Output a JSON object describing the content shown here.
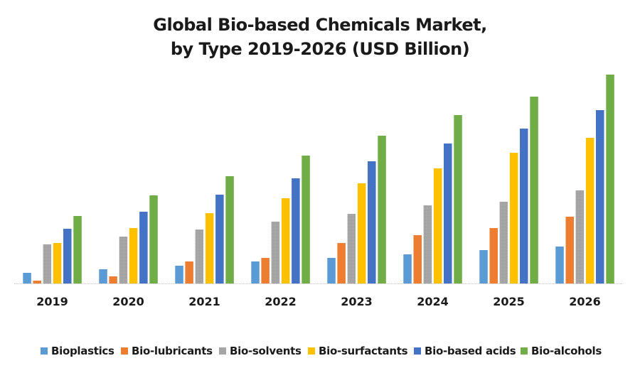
{
  "chart_data": {
    "type": "bar",
    "title": "Global Bio-based Chemicals Market, by Type 2019-2026 (USD Billion)",
    "title_lines": [
      "Global Bio-based Chemicals Market,",
      "by Type 2019-2026 (USD Billion)"
    ],
    "xlabel": "",
    "ylabel": "",
    "ylim": [
      0,
      30
    ],
    "grid": false,
    "legend_position": "bottom",
    "categories": [
      "2019",
      "2020",
      "2021",
      "2022",
      "2023",
      "2024",
      "2025",
      "2026"
    ],
    "series": [
      {
        "name": "Bioplastics",
        "color": "#5B9BD5",
        "values": [
          1.5,
          2.0,
          2.5,
          3.1,
          3.6,
          4.1,
          4.7,
          5.2
        ]
      },
      {
        "name": "Bio-lubricants",
        "color": "#ED7D31",
        "values": [
          0.4,
          1.0,
          3.1,
          3.6,
          5.7,
          6.8,
          7.8,
          9.4
        ]
      },
      {
        "name": "Bio-solvents",
        "color": "#A5A5A5",
        "values": [
          5.5,
          6.6,
          7.6,
          8.7,
          9.8,
          11.0,
          11.5,
          13.1
        ]
      },
      {
        "name": "Bio-surfactants",
        "color": "#FFC000",
        "values": [
          5.7,
          7.8,
          9.9,
          12.0,
          14.1,
          16.2,
          18.4,
          20.5
        ]
      },
      {
        "name": "Bio-based acids",
        "color": "#4472C4",
        "values": [
          7.7,
          10.1,
          12.5,
          14.8,
          17.2,
          19.7,
          21.8,
          24.4
        ]
      },
      {
        "name": "Bio-alcohols",
        "color": "#70AD47",
        "values": [
          9.5,
          12.4,
          15.1,
          18.0,
          20.8,
          23.7,
          26.3,
          29.4
        ]
      }
    ]
  }
}
